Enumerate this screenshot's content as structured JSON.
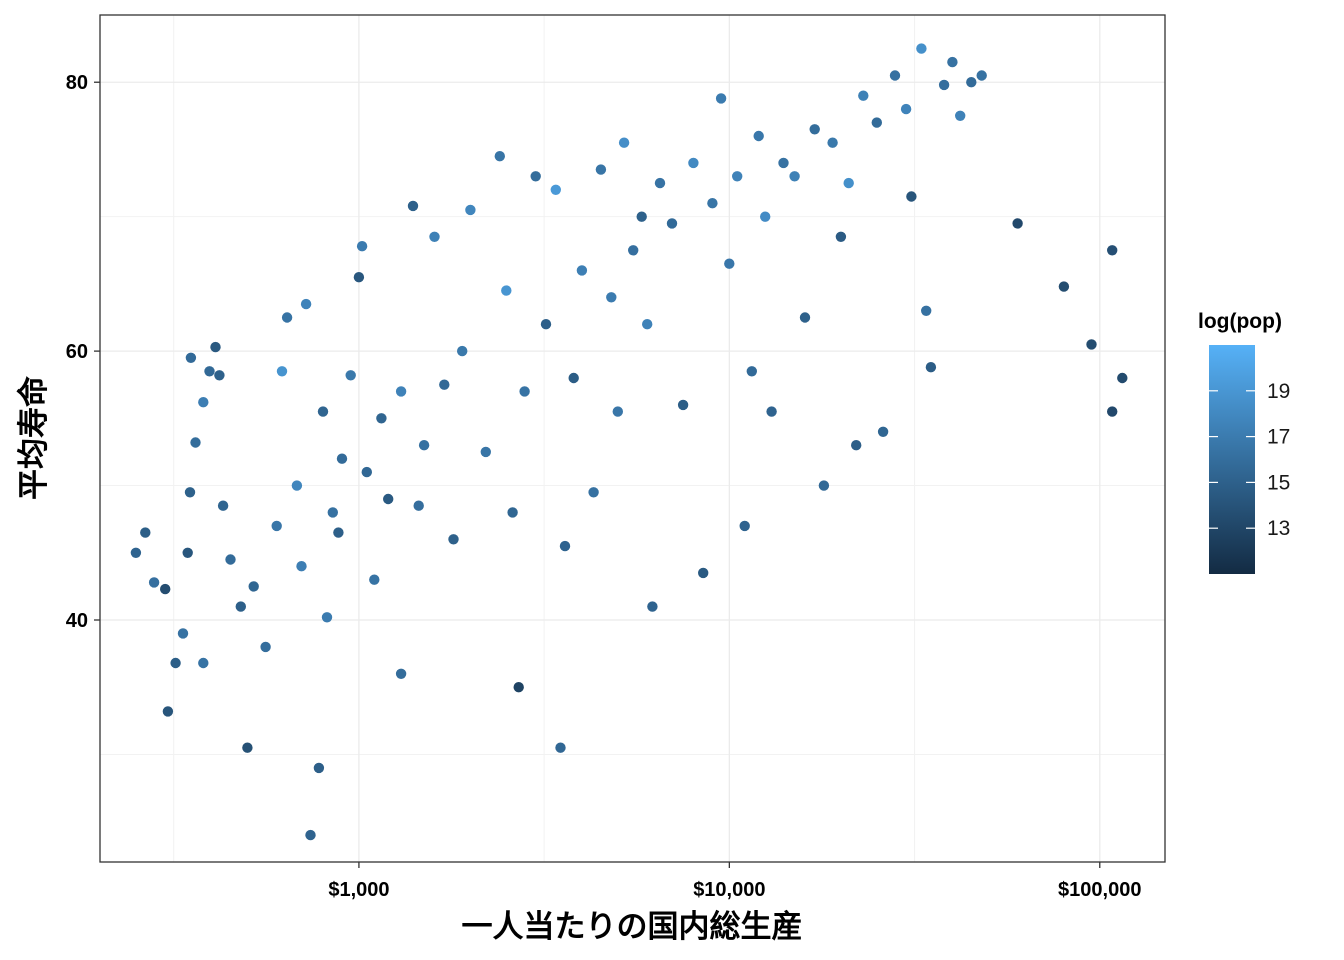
{
  "chart_data": {
    "type": "scatter",
    "xlabel": "一人当たりの国内総生産",
    "ylabel": "平均寿命",
    "x_scale": "log10",
    "xlim": [
      200,
      150000
    ],
    "ylim": [
      22,
      85
    ],
    "x_ticks": [
      {
        "value": 1000,
        "label": "$1,000"
      },
      {
        "value": 10000,
        "label": "$10,000"
      },
      {
        "value": 100000,
        "label": "$100,000"
      }
    ],
    "y_ticks": [
      {
        "value": 40,
        "label": "40"
      },
      {
        "value": 60,
        "label": "60"
      },
      {
        "value": 80,
        "label": "80"
      }
    ],
    "grid": true,
    "legend": {
      "title": "log(pop)",
      "placement": "right",
      "range": [
        11,
        21
      ],
      "ticks": [
        {
          "value": 13,
          "label": "13"
        },
        {
          "value": 15,
          "label": "15"
        },
        {
          "value": 17,
          "label": "17"
        },
        {
          "value": 19,
          "label": "19"
        }
      ],
      "color_low": "#132b43",
      "color_high": "#56b1f7"
    },
    "series": [
      {
        "points": [
          [
            250,
            45.0,
            15.2
          ],
          [
            265,
            46.5,
            14.8
          ],
          [
            280,
            42.8,
            16.1
          ],
          [
            300,
            42.3,
            13.5
          ],
          [
            305,
            33.2,
            14.1
          ],
          [
            320,
            36.8,
            14.8
          ],
          [
            335,
            39.0,
            16.3
          ],
          [
            345,
            45.0,
            14.2
          ],
          [
            350,
            49.5,
            15.0
          ],
          [
            352,
            59.5,
            15.7
          ],
          [
            362,
            53.2,
            15.9
          ],
          [
            380,
            56.2,
            17.2
          ],
          [
            380,
            36.8,
            16.4
          ],
          [
            395,
            58.5,
            15.6
          ],
          [
            410,
            60.3,
            14.4
          ],
          [
            420,
            58.2,
            15.0
          ],
          [
            430,
            48.5,
            15.3
          ],
          [
            450,
            44.5,
            15.8
          ],
          [
            480,
            41.0,
            14.9
          ],
          [
            500,
            30.5,
            13.8
          ],
          [
            520,
            42.5,
            15.4
          ],
          [
            560,
            38.0,
            16.0
          ],
          [
            600,
            47.0,
            16.6
          ],
          [
            620,
            58.5,
            18.8
          ],
          [
            640,
            62.5,
            16.4
          ],
          [
            680,
            50.0,
            17.8
          ],
          [
            700,
            44.0,
            17.2
          ],
          [
            720,
            63.5,
            17.6
          ],
          [
            740,
            24.0,
            15.2
          ],
          [
            780,
            29.0,
            14.9
          ],
          [
            800,
            55.5,
            15.3
          ],
          [
            820,
            40.2,
            17.0
          ],
          [
            850,
            48.0,
            16.2
          ],
          [
            880,
            46.5,
            14.9
          ],
          [
            900,
            52.0,
            15.8
          ],
          [
            950,
            58.2,
            16.8
          ],
          [
            1000,
            65.5,
            14.3
          ],
          [
            1020,
            67.8,
            17.0
          ],
          [
            1050,
            51.0,
            15.5
          ],
          [
            1100,
            43.0,
            16.4
          ],
          [
            1150,
            55.0,
            15.3
          ],
          [
            1200,
            49.0,
            14.5
          ],
          [
            1300,
            57.0,
            17.5
          ],
          [
            1300,
            36.0,
            15.9
          ],
          [
            1400,
            70.8,
            15.0
          ],
          [
            1450,
            48.5,
            16.0
          ],
          [
            1500,
            53.0,
            16.2
          ],
          [
            1600,
            68.5,
            17.4
          ],
          [
            1700,
            57.5,
            15.6
          ],
          [
            1800,
            46.0,
            15.0
          ],
          [
            1900,
            60.0,
            16.8
          ],
          [
            2000,
            70.5,
            17.8
          ],
          [
            2200,
            52.5,
            16.5
          ],
          [
            2400,
            74.5,
            16.5
          ],
          [
            2500,
            64.5,
            18.9
          ],
          [
            2600,
            48.0,
            15.4
          ],
          [
            2700,
            35.0,
            12.8
          ],
          [
            2800,
            57.0,
            16.4
          ],
          [
            3000,
            73.0,
            15.9
          ],
          [
            3200,
            62.0,
            14.9
          ],
          [
            3400,
            72.0,
            19.2
          ],
          [
            3500,
            30.5,
            15.5
          ],
          [
            3600,
            45.5,
            15.2
          ],
          [
            3800,
            58.0,
            14.7
          ],
          [
            4000,
            66.0,
            17.3
          ],
          [
            4300,
            49.5,
            16.2
          ],
          [
            4500,
            73.5,
            16.5
          ],
          [
            4800,
            64.0,
            17.0
          ],
          [
            5000,
            55.5,
            16.6
          ],
          [
            5200,
            75.5,
            18.4
          ],
          [
            5500,
            67.5,
            16.1
          ],
          [
            5800,
            70.0,
            15.0
          ],
          [
            6000,
            62.0,
            17.5
          ],
          [
            6200,
            41.0,
            15.2
          ],
          [
            6500,
            72.5,
            16.4
          ],
          [
            7000,
            69.5,
            15.7
          ],
          [
            7500,
            56.0,
            14.8
          ],
          [
            8000,
            74.0,
            18.0
          ],
          [
            8500,
            43.5,
            14.5
          ],
          [
            9000,
            71.0,
            16.5
          ],
          [
            9500,
            78.8,
            17.0
          ],
          [
            10000,
            66.5,
            16.7
          ],
          [
            10500,
            73.0,
            17.5
          ],
          [
            11000,
            47.0,
            15.2
          ],
          [
            11500,
            58.5,
            15.7
          ],
          [
            12000,
            76.0,
            16.7
          ],
          [
            12500,
            70.0,
            18.2
          ],
          [
            13000,
            55.5,
            15.2
          ],
          [
            14000,
            74.0,
            16.3
          ],
          [
            15000,
            73.0,
            17.4
          ],
          [
            16000,
            62.5,
            15.0
          ],
          [
            17000,
            76.5,
            15.9
          ],
          [
            18000,
            50.0,
            15.6
          ],
          [
            19000,
            75.5,
            16.8
          ],
          [
            20000,
            68.5,
            14.6
          ],
          [
            21000,
            72.5,
            18.5
          ],
          [
            22000,
            53.0,
            14.9
          ],
          [
            23000,
            79.0,
            17.4
          ],
          [
            25000,
            77.0,
            15.8
          ],
          [
            26000,
            54.0,
            15.4
          ],
          [
            28000,
            80.5,
            16.2
          ],
          [
            30000,
            78.0,
            17.6
          ],
          [
            31000,
            71.5,
            14.1
          ],
          [
            33000,
            82.5,
            18.5
          ],
          [
            34000,
            63.0,
            16.2
          ],
          [
            35000,
            58.8,
            14.7
          ],
          [
            38000,
            79.8,
            16.0
          ],
          [
            40000,
            81.5,
            16.3
          ],
          [
            42000,
            77.5,
            17.5
          ],
          [
            45000,
            80.0,
            15.8
          ],
          [
            48000,
            80.5,
            16.3
          ],
          [
            60000,
            69.5,
            13.2
          ],
          [
            80000,
            64.8,
            13.5
          ],
          [
            95000,
            60.5,
            13.5
          ],
          [
            108000,
            67.5,
            13.7
          ],
          [
            108000,
            55.5,
            13.2
          ],
          [
            115000,
            58.0,
            13.4
          ]
        ]
      }
    ]
  }
}
